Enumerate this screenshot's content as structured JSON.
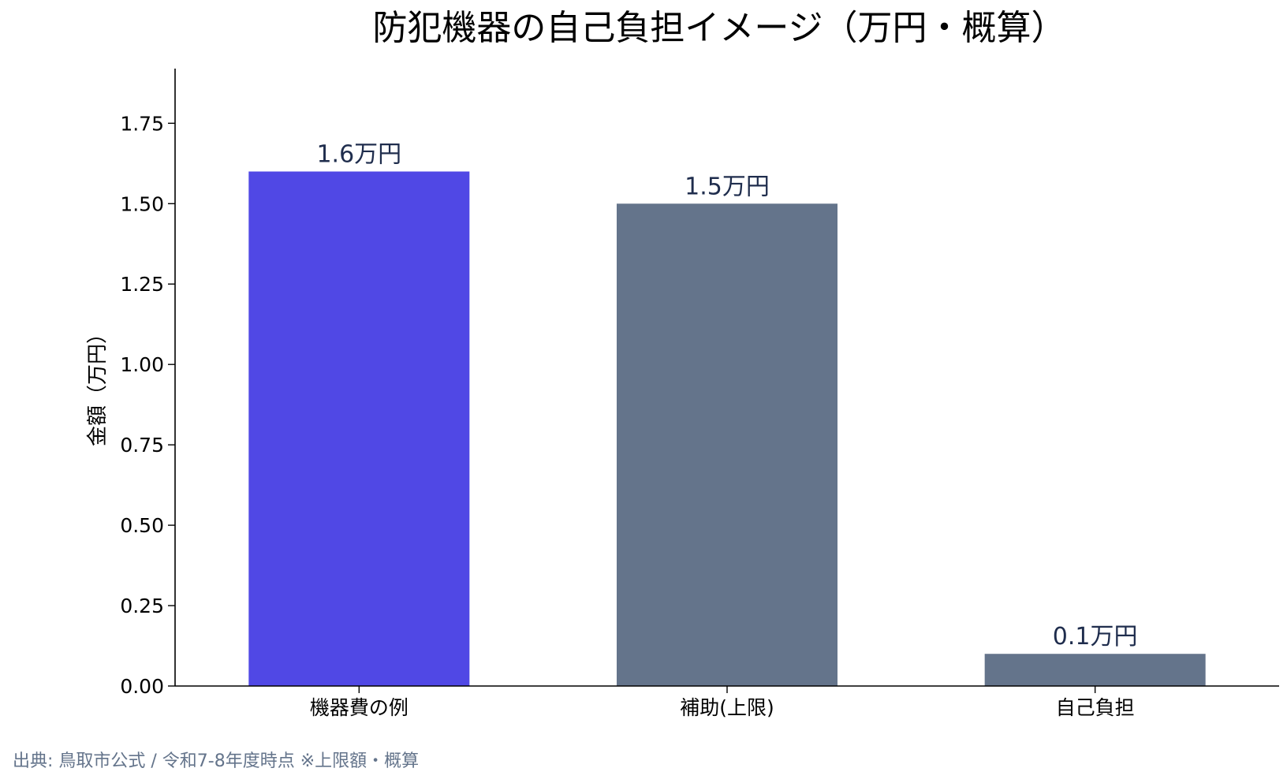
{
  "chart_data": {
    "type": "bar",
    "title": "防犯機器の自己負担イメージ（万円・概算）",
    "ylabel": "金額（万円）",
    "xlabel": "",
    "categories": [
      "機器費の例",
      "補助(上限)",
      "自己負担"
    ],
    "values": [
      1.6,
      1.5,
      0.1
    ],
    "value_labels": [
      "1.6万円",
      "1.5万円",
      "0.1万円"
    ],
    "bar_colors": [
      "#5048e5",
      "#64748b",
      "#64748b"
    ],
    "ylim": [
      0,
      1.92
    ],
    "yticks": [
      0,
      0.25,
      0.5,
      0.75,
      1.0,
      1.25,
      1.5,
      1.75
    ],
    "ytick_labels": [
      "0.00",
      "0.25",
      "0.50",
      "0.75",
      "1.00",
      "1.25",
      "1.50",
      "1.75"
    ],
    "grid": false,
    "legend": "none"
  },
  "colors": {
    "axis": "#000000",
    "value_label": "#1f2d4d",
    "source_text": "#64748b"
  },
  "footer": {
    "source": "出典: 鳥取市公式 / 令和7-8年度時点 ※上限額・概算"
  }
}
